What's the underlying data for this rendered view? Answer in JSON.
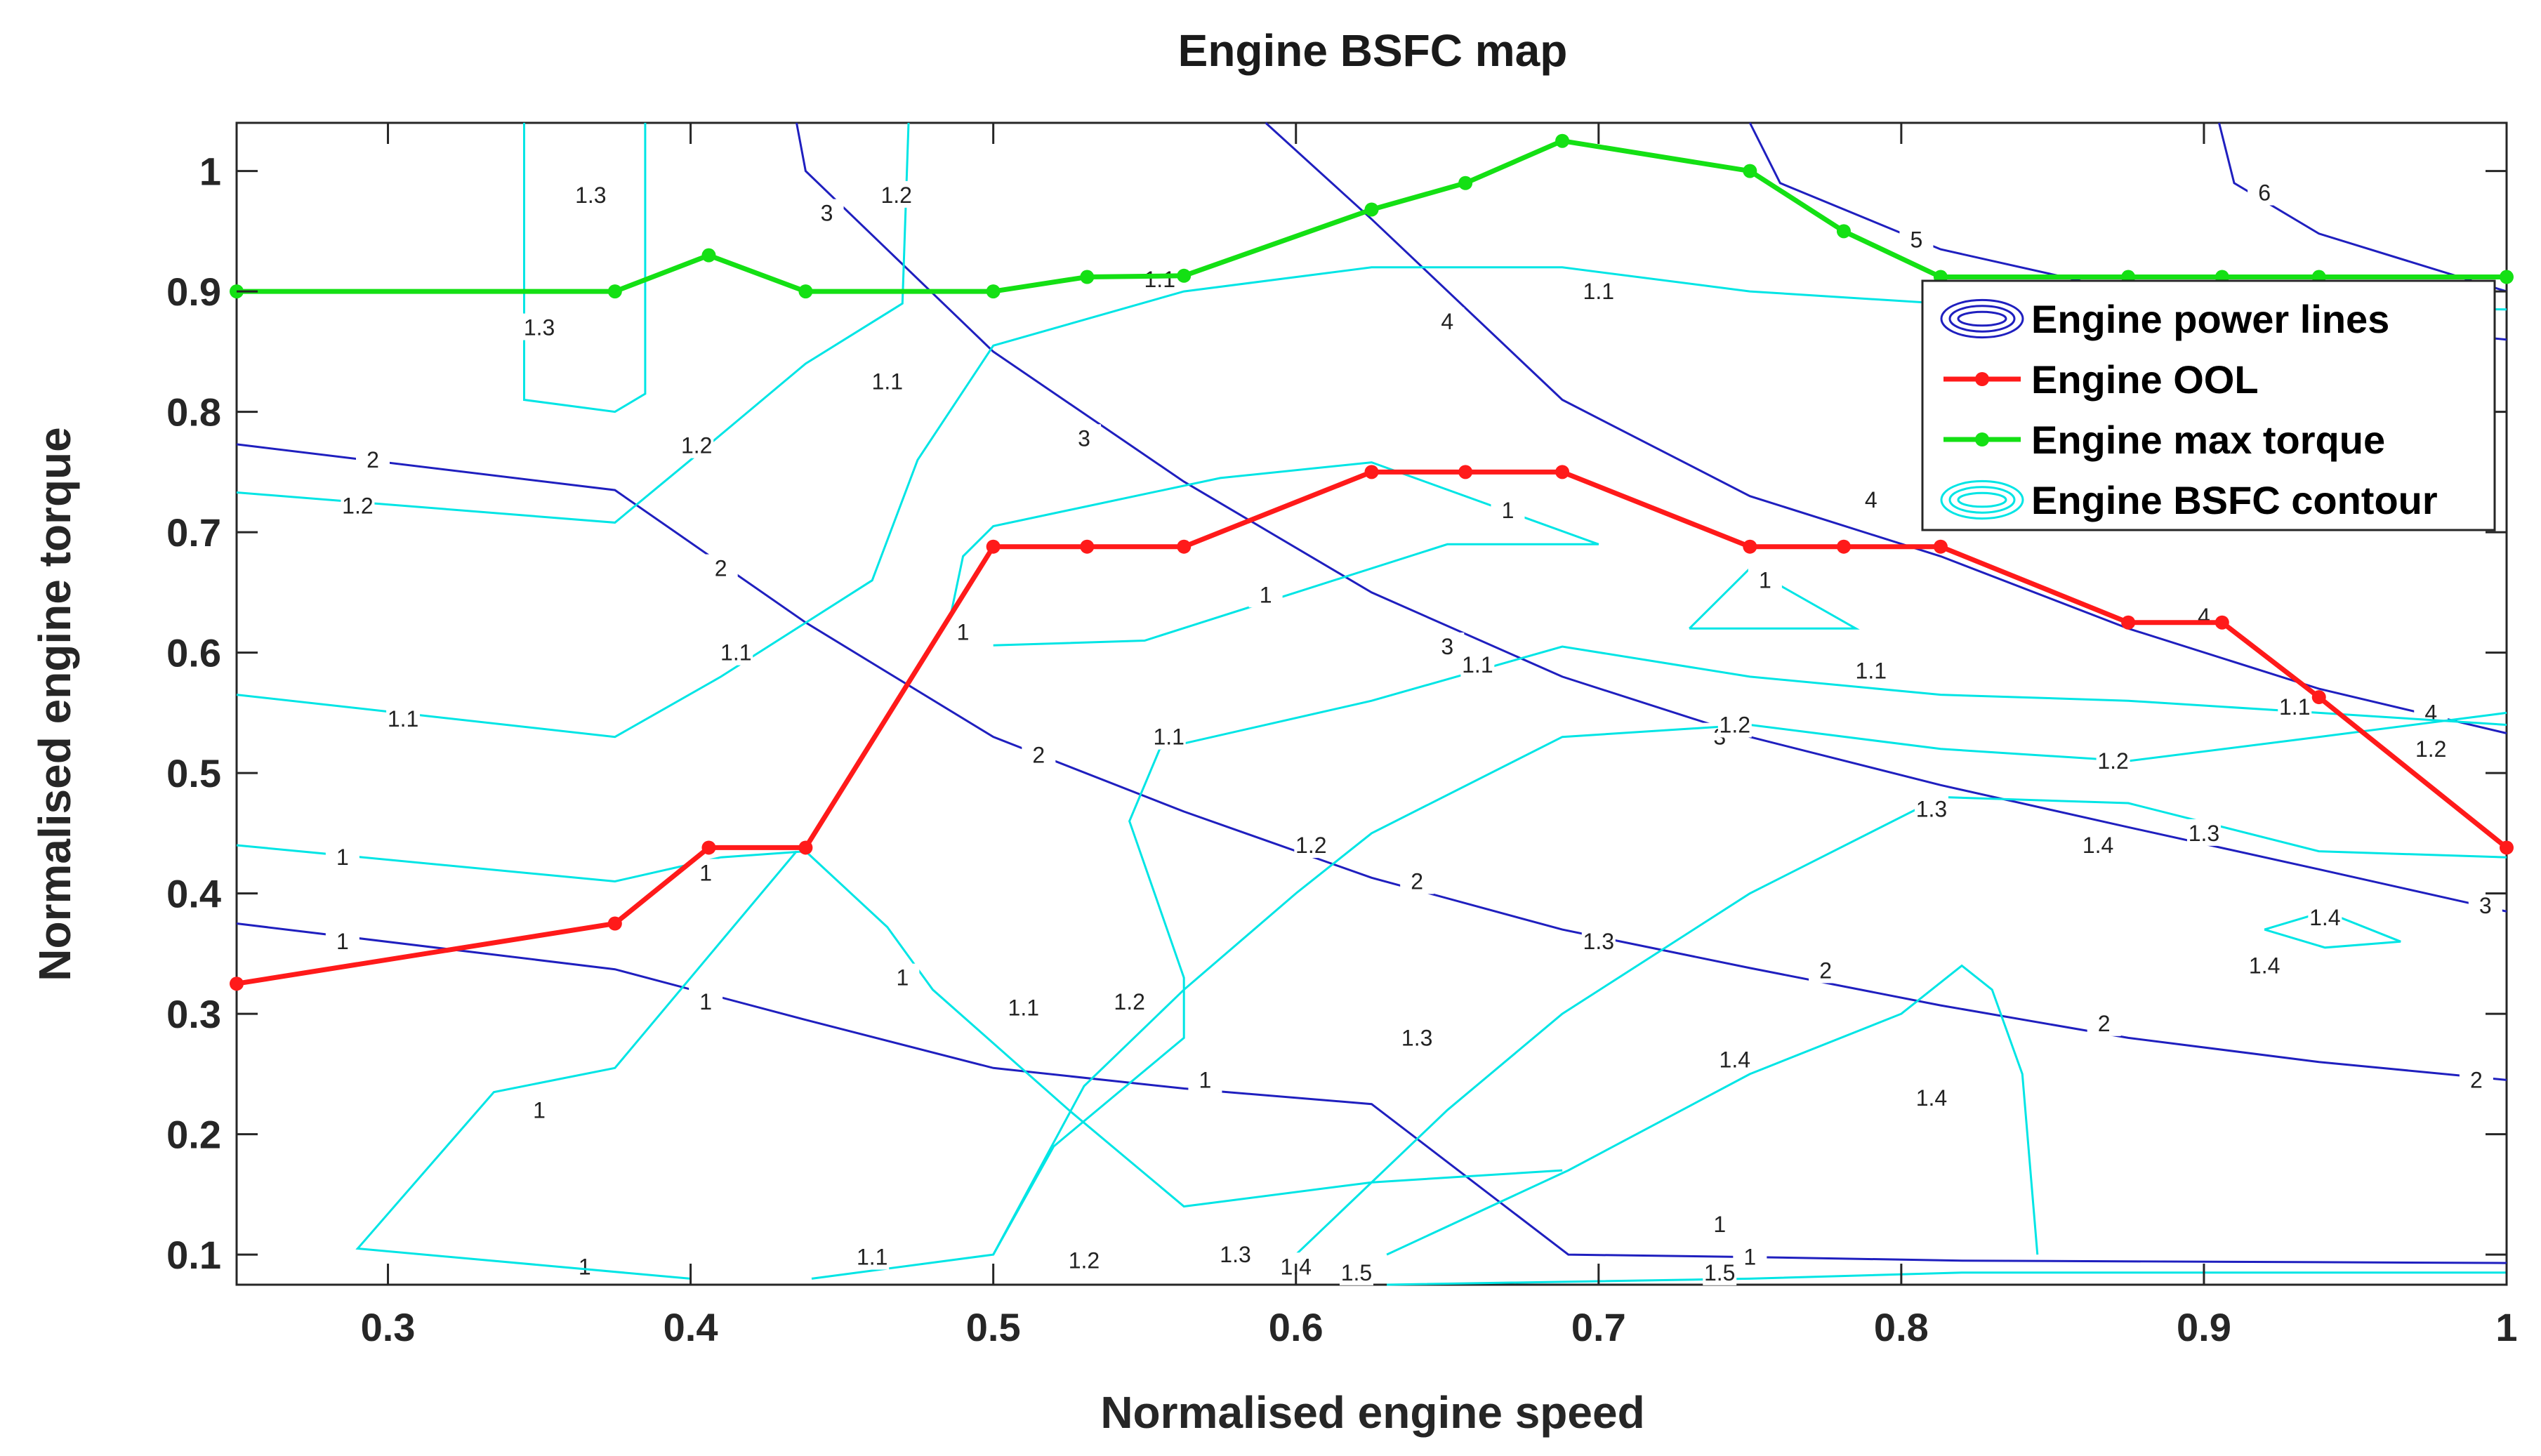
{
  "chart_data": {
    "type": "line",
    "title": "Engine BSFC map",
    "xlabel": "Normalised engine speed",
    "ylabel": "Normalised engine torque",
    "xlim": [
      0.25,
      1.0
    ],
    "ylim": [
      0.075,
      1.04
    ],
    "xticks": [
      0.3,
      0.4,
      0.5,
      0.6,
      0.7,
      0.8,
      0.9,
      1
    ],
    "yticks": [
      0.1,
      0.2,
      0.3,
      0.4,
      0.5,
      0.6,
      0.7,
      0.8,
      0.9,
      1
    ],
    "grid": false,
    "legend": {
      "placement": "top-right",
      "entries": [
        {
          "label": "Engine power lines",
          "color": "#1f1fbf",
          "kind": "contour"
        },
        {
          "label": "Engine OOL",
          "color": "#ff1a1a",
          "kind": "line-marker"
        },
        {
          "label": "Engine max torque",
          "color": "#14e014",
          "kind": "line-marker"
        },
        {
          "label": "Engine BSFC contour",
          "color": "#00e5e5",
          "kind": "contour"
        }
      ]
    },
    "series": [
      {
        "name": "Engine OOL",
        "color": "#ff1a1a",
        "x": [
          0.25,
          0.375,
          0.406,
          0.438,
          0.5,
          0.531,
          0.563,
          0.625,
          0.656,
          0.688,
          0.75,
          0.781,
          0.813,
          0.875,
          0.906,
          0.938,
          1.0
        ],
        "y": [
          0.325,
          0.375,
          0.438,
          0.438,
          0.688,
          0.688,
          0.688,
          0.75,
          0.75,
          0.75,
          0.688,
          0.688,
          0.688,
          0.625,
          0.625,
          0.563,
          0.438
        ]
      },
      {
        "name": "Engine max torque",
        "color": "#14e014",
        "x": [
          0.25,
          0.375,
          0.406,
          0.438,
          0.5,
          0.531,
          0.563,
          0.625,
          0.656,
          0.688,
          0.75,
          0.781,
          0.813,
          0.875,
          0.906,
          0.938,
          1.0
        ],
        "y": [
          0.9,
          0.9,
          0.93,
          0.9,
          0.9,
          0.912,
          0.913,
          0.968,
          0.99,
          1.025,
          1.0,
          0.95,
          0.912,
          0.912,
          0.912,
          0.912,
          0.912
        ]
      }
    ],
    "power_lines": [
      {
        "level": "1",
        "points": [
          [
            0.25,
            0.375
          ],
          [
            0.375,
            0.337
          ],
          [
            0.438,
            0.295
          ],
          [
            0.5,
            0.255
          ],
          [
            0.563,
            0.238
          ],
          [
            0.625,
            0.225
          ],
          [
            0.69,
            0.1
          ],
          [
            0.75,
            0.098
          ],
          [
            0.82,
            0.095
          ],
          [
            1.0,
            0.093
          ]
        ],
        "labels": [
          [
            0.285,
            0.36
          ],
          [
            0.405,
            0.31
          ],
          [
            0.57,
            0.245
          ],
          [
            0.74,
            0.125
          ],
          [
            0.75,
            0.098
          ]
        ]
      },
      {
        "level": "2",
        "points": [
          [
            0.25,
            0.773
          ],
          [
            0.375,
            0.735
          ],
          [
            0.438,
            0.625
          ],
          [
            0.5,
            0.53
          ],
          [
            0.563,
            0.468
          ],
          [
            0.625,
            0.413
          ],
          [
            0.688,
            0.37
          ],
          [
            0.75,
            0.338
          ],
          [
            0.813,
            0.307
          ],
          [
            0.875,
            0.28
          ],
          [
            0.938,
            0.26
          ],
          [
            1.0,
            0.245
          ]
        ],
        "labels": [
          [
            0.295,
            0.76
          ],
          [
            0.41,
            0.67
          ],
          [
            0.515,
            0.515
          ],
          [
            0.64,
            0.41
          ],
          [
            0.775,
            0.336
          ],
          [
            0.867,
            0.292
          ],
          [
            0.99,
            0.245
          ]
        ]
      },
      {
        "level": "3",
        "points": [
          [
            0.435,
            1.04
          ],
          [
            0.438,
            1.0
          ],
          [
            0.5,
            0.85
          ],
          [
            0.563,
            0.742
          ],
          [
            0.625,
            0.65
          ],
          [
            0.688,
            0.58
          ],
          [
            0.75,
            0.53
          ],
          [
            0.813,
            0.49
          ],
          [
            0.875,
            0.455
          ],
          [
            0.938,
            0.42
          ],
          [
            1.0,
            0.385
          ]
        ],
        "labels": [
          [
            0.445,
            0.965
          ],
          [
            0.53,
            0.778
          ],
          [
            0.65,
            0.605
          ],
          [
            0.74,
            0.53
          ],
          [
            0.993,
            0.39
          ]
        ]
      },
      {
        "level": "4",
        "points": [
          [
            0.59,
            1.04
          ],
          [
            0.625,
            0.96
          ],
          [
            0.688,
            0.81
          ],
          [
            0.75,
            0.73
          ],
          [
            0.813,
            0.68
          ],
          [
            0.875,
            0.62
          ],
          [
            0.938,
            0.57
          ],
          [
            1.0,
            0.533
          ]
        ],
        "labels": [
          [
            0.65,
            0.875
          ],
          [
            0.79,
            0.727
          ],
          [
            0.9,
            0.63
          ],
          [
            0.975,
            0.55
          ]
        ]
      },
      {
        "level": "5",
        "points": [
          [
            0.75,
            1.04
          ],
          [
            0.76,
            0.99
          ],
          [
            0.813,
            0.935
          ],
          [
            0.875,
            0.9
          ],
          [
            0.938,
            0.875
          ],
          [
            1.0,
            0.86
          ]
        ],
        "labels": [
          [
            0.805,
            0.943
          ]
        ]
      },
      {
        "level": "6",
        "points": [
          [
            0.905,
            1.04
          ],
          [
            0.91,
            0.99
          ],
          [
            0.938,
            0.948
          ],
          [
            1.0,
            0.9
          ]
        ],
        "labels": [
          [
            0.92,
            0.982
          ]
        ]
      }
    ],
    "bsfc_contours": [
      {
        "level": "1.3",
        "points": [
          [
            0.345,
            1.04
          ],
          [
            0.345,
            0.81
          ],
          [
            0.375,
            0.8
          ],
          [
            0.385,
            0.815
          ],
          [
            0.385,
            1.04
          ]
        ],
        "labels": [
          [
            0.367,
            0.98
          ],
          [
            0.35,
            0.87
          ]
        ]
      },
      {
        "level": "1.2",
        "points": [
          [
            0.25,
            0.733
          ],
          [
            0.375,
            0.708
          ],
          [
            0.4,
            0.76
          ],
          [
            0.438,
            0.84
          ],
          [
            0.47,
            0.89
          ],
          [
            0.472,
            1.04
          ]
        ],
        "labels": [
          [
            0.29,
            0.722
          ],
          [
            0.402,
            0.772
          ],
          [
            0.468,
            0.98
          ]
        ]
      },
      {
        "level": "1.1",
        "points": [
          [
            0.25,
            0.565
          ],
          [
            0.375,
            0.53
          ],
          [
            0.41,
            0.58
          ],
          [
            0.46,
            0.66
          ],
          [
            0.475,
            0.76
          ],
          [
            0.5,
            0.855
          ],
          [
            0.563,
            0.9
          ],
          [
            0.625,
            0.92
          ],
          [
            0.688,
            0.92
          ],
          [
            0.75,
            0.9
          ],
          [
            0.813,
            0.89
          ],
          [
            1.0,
            0.885
          ]
        ],
        "labels": [
          [
            0.305,
            0.545
          ],
          [
            0.415,
            0.6
          ],
          [
            0.465,
            0.825
          ],
          [
            0.555,
            0.91
          ],
          [
            0.7,
            0.9
          ]
        ]
      },
      {
        "level": "1",
        "points": [
          [
            0.25,
            0.44
          ],
          [
            0.375,
            0.41
          ],
          [
            0.41,
            0.43
          ],
          [
            0.438,
            0.435
          ],
          [
            0.465,
            0.372
          ],
          [
            0.48,
            0.32
          ],
          [
            0.525,
            0.22
          ],
          [
            0.563,
            0.14
          ],
          [
            0.625,
            0.16
          ],
          [
            0.688,
            0.17
          ]
        ],
        "labels": [
          [
            0.285,
            0.43
          ],
          [
            0.47,
            0.33
          ],
          [
            0.365,
            0.09
          ],
          [
            0.35,
            0.22
          ]
        ]
      },
      {
        "level": "1",
        "points": [
          [
            0.435,
            0.435
          ],
          [
            0.375,
            0.255
          ],
          [
            0.335,
            0.235
          ],
          [
            0.29,
            0.105
          ],
          [
            0.4,
            0.08
          ]
        ],
        "labels": [
          [
            0.405,
            0.417
          ]
        ]
      },
      {
        "level": "1",
        "points": [
          [
            0.485,
            0.62
          ],
          [
            0.49,
            0.68
          ],
          [
            0.5,
            0.705
          ],
          [
            0.575,
            0.745
          ],
          [
            0.625,
            0.758
          ],
          [
            0.7,
            0.69
          ],
          [
            0.65,
            0.69
          ],
          [
            0.6,
            0.65
          ],
          [
            0.55,
            0.61
          ],
          [
            0.5,
            0.606
          ]
        ],
        "labels": [
          [
            0.49,
            0.617
          ],
          [
            0.67,
            0.718
          ],
          [
            0.59,
            0.648
          ]
        ]
      },
      {
        "level": "1",
        "points": [
          [
            0.73,
            0.62
          ],
          [
            0.75,
            0.67
          ],
          [
            0.785,
            0.62
          ],
          [
            0.73,
            0.62
          ]
        ],
        "labels": [
          [
            0.755,
            0.66
          ]
        ]
      },
      {
        "level": "1.1",
        "points": [
          [
            0.44,
            0.08
          ],
          [
            0.5,
            0.1
          ],
          [
            0.52,
            0.19
          ],
          [
            0.563,
            0.28
          ],
          [
            0.563,
            0.33
          ],
          [
            0.545,
            0.46
          ],
          [
            0.555,
            0.52
          ],
          [
            0.625,
            0.56
          ],
          [
            0.688,
            0.605
          ],
          [
            0.75,
            0.58
          ],
          [
            0.813,
            0.565
          ],
          [
            0.875,
            0.56
          ],
          [
            0.938,
            0.55
          ],
          [
            1.0,
            0.54
          ]
        ],
        "labels": [
          [
            0.46,
            0.098
          ],
          [
            0.51,
            0.305
          ],
          [
            0.558,
            0.53
          ],
          [
            0.66,
            0.59
          ],
          [
            0.79,
            0.585
          ],
          [
            0.93,
            0.555
          ]
        ]
      },
      {
        "level": "1.2",
        "points": [
          [
            0.5,
            0.1
          ],
          [
            0.53,
            0.24
          ],
          [
            0.563,
            0.32
          ],
          [
            0.6,
            0.4
          ],
          [
            0.625,
            0.45
          ],
          [
            0.688,
            0.53
          ],
          [
            0.75,
            0.54
          ],
          [
            0.813,
            0.52
          ],
          [
            0.875,
            0.51
          ],
          [
            0.938,
            0.53
          ],
          [
            1.0,
            0.55
          ]
        ],
        "labels": [
          [
            0.53,
            0.095
          ],
          [
            0.545,
            0.31
          ],
          [
            0.605,
            0.44
          ],
          [
            0.745,
            0.54
          ],
          [
            0.87,
            0.51
          ],
          [
            0.975,
            0.52
          ]
        ]
      },
      {
        "level": "1.3",
        "points": [
          [
            0.6,
            0.1
          ],
          [
            0.65,
            0.22
          ],
          [
            0.688,
            0.3
          ],
          [
            0.75,
            0.4
          ],
          [
            0.813,
            0.48
          ],
          [
            0.875,
            0.475
          ],
          [
            0.938,
            0.435
          ],
          [
            1.0,
            0.43
          ]
        ],
        "labels": [
          [
            0.58,
            0.1
          ],
          [
            0.64,
            0.28
          ],
          [
            0.7,
            0.36
          ],
          [
            0.81,
            0.47
          ],
          [
            0.9,
            0.45
          ]
        ]
      },
      {
        "level": "1.4",
        "points": [
          [
            0.63,
            0.1
          ],
          [
            0.69,
            0.17
          ],
          [
            0.75,
            0.25
          ],
          [
            0.8,
            0.3
          ],
          [
            0.82,
            0.34
          ],
          [
            0.83,
            0.32
          ],
          [
            0.84,
            0.25
          ],
          [
            0.845,
            0.1
          ]
        ],
        "labels": [
          [
            0.6,
            0.09
          ],
          [
            0.745,
            0.262
          ],
          [
            0.81,
            0.23
          ],
          [
            0.865,
            0.44
          ]
        ]
      },
      {
        "level": "1.5",
        "points": [
          [
            0.63,
            0.075
          ],
          [
            0.75,
            0.08
          ],
          [
            0.82,
            0.085
          ],
          [
            1.0,
            0.085
          ]
        ],
        "labels": [
          [
            0.62,
            0.085
          ],
          [
            0.74,
            0.085
          ]
        ]
      },
      {
        "level": "1.4",
        "points": [
          [
            0.92,
            0.37
          ],
          [
            0.94,
            0.385
          ],
          [
            0.965,
            0.36
          ],
          [
            0.94,
            0.355
          ],
          [
            0.92,
            0.37
          ]
        ],
        "labels": [
          [
            0.94,
            0.38
          ],
          [
            0.92,
            0.34
          ]
        ]
      }
    ]
  }
}
